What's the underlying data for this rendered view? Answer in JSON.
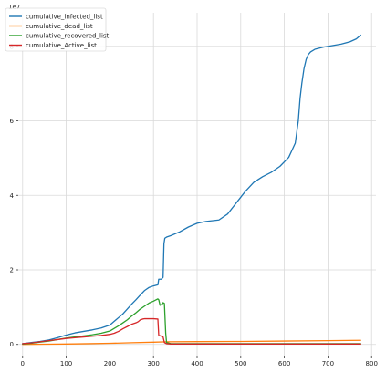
{
  "chart_data": {
    "type": "line",
    "title": "",
    "xlabel": "",
    "ylabel": "",
    "offset_text": "1e7",
    "xlim": [
      -10,
      810
    ],
    "ylim": [
      -0.3,
      8.9
    ],
    "y_scale_factor": 10000000,
    "xticks": [
      0,
      100,
      200,
      300,
      400,
      500,
      600,
      700,
      800
    ],
    "yticks": [
      0,
      2,
      4,
      6,
      8
    ],
    "grid": true,
    "legend_position": "top-left",
    "series": [
      {
        "name": "cumulative_infected_list",
        "color": "#1f77b4",
        "x": [
          0,
          20,
          40,
          60,
          80,
          100,
          120,
          140,
          160,
          180,
          200,
          210,
          220,
          230,
          240,
          250,
          260,
          270,
          280,
          290,
          300,
          310,
          312,
          318,
          322,
          324,
          326,
          330,
          340,
          360,
          380,
          400,
          420,
          450,
          470,
          490,
          510,
          530,
          550,
          570,
          590,
          610,
          625,
          632,
          636,
          640,
          645,
          650,
          655,
          660,
          670,
          690,
          710,
          730,
          750,
          765,
          775
        ],
        "y": [
          0.02,
          0.05,
          0.08,
          0.12,
          0.18,
          0.25,
          0.31,
          0.35,
          0.39,
          0.44,
          0.52,
          0.62,
          0.72,
          0.82,
          0.95,
          1.08,
          1.2,
          1.33,
          1.45,
          1.53,
          1.57,
          1.6,
          1.75,
          1.75,
          1.8,
          2.7,
          2.85,
          2.88,
          2.92,
          3.02,
          3.15,
          3.25,
          3.3,
          3.34,
          3.5,
          3.8,
          4.1,
          4.35,
          4.5,
          4.62,
          4.78,
          5.02,
          5.4,
          6.0,
          6.6,
          7.0,
          7.4,
          7.65,
          7.78,
          7.85,
          7.92,
          7.98,
          8.02,
          8.06,
          8.12,
          8.2,
          8.3
        ]
      },
      {
        "name": "cumulative_dead_list",
        "color": "#ff7f0e",
        "x": [
          0,
          50,
          100,
          150,
          200,
          250,
          300,
          330,
          400,
          500,
          600,
          700,
          775
        ],
        "y": [
          0.0,
          0.005,
          0.01,
          0.02,
          0.03,
          0.045,
          0.06,
          0.07,
          0.075,
          0.08,
          0.09,
          0.1,
          0.11
        ]
      },
      {
        "name": "cumulative_recovered_list",
        "color": "#2ca02c",
        "x": [
          0,
          20,
          40,
          60,
          80,
          100,
          120,
          140,
          160,
          180,
          200,
          210,
          220,
          230,
          240,
          250,
          260,
          270,
          280,
          290,
          300,
          305,
          310,
          312,
          315,
          320,
          322,
          325,
          328,
          330,
          340,
          400,
          500,
          600,
          700,
          775
        ],
        "y": [
          0.01,
          0.03,
          0.06,
          0.09,
          0.13,
          0.17,
          0.2,
          0.23,
          0.26,
          0.3,
          0.36,
          0.43,
          0.5,
          0.58,
          0.66,
          0.76,
          0.85,
          0.95,
          1.03,
          1.11,
          1.16,
          1.19,
          1.22,
          1.2,
          1.05,
          1.08,
          1.12,
          1.1,
          0.3,
          0.05,
          0.02,
          0.02,
          0.02,
          0.02,
          0.02,
          0.02
        ]
      },
      {
        "name": "cumulative_Active_list",
        "color": "#d62728",
        "x": [
          0,
          20,
          40,
          60,
          80,
          100,
          120,
          140,
          160,
          180,
          200,
          210,
          220,
          230,
          240,
          250,
          260,
          265,
          270,
          275,
          280,
          290,
          300,
          310,
          312,
          318,
          322,
          325,
          328,
          330,
          340,
          400,
          500,
          600,
          700,
          775
        ],
        "y": [
          0.02,
          0.04,
          0.07,
          0.1,
          0.13,
          0.16,
          0.18,
          0.2,
          0.22,
          0.24,
          0.27,
          0.3,
          0.35,
          0.42,
          0.48,
          0.54,
          0.58,
          0.61,
          0.66,
          0.68,
          0.69,
          0.69,
          0.69,
          0.68,
          0.25,
          0.22,
          0.2,
          0.05,
          0.03,
          0.02,
          0.01,
          0.01,
          0.01,
          0.01,
          0.01,
          0.01
        ]
      }
    ]
  }
}
